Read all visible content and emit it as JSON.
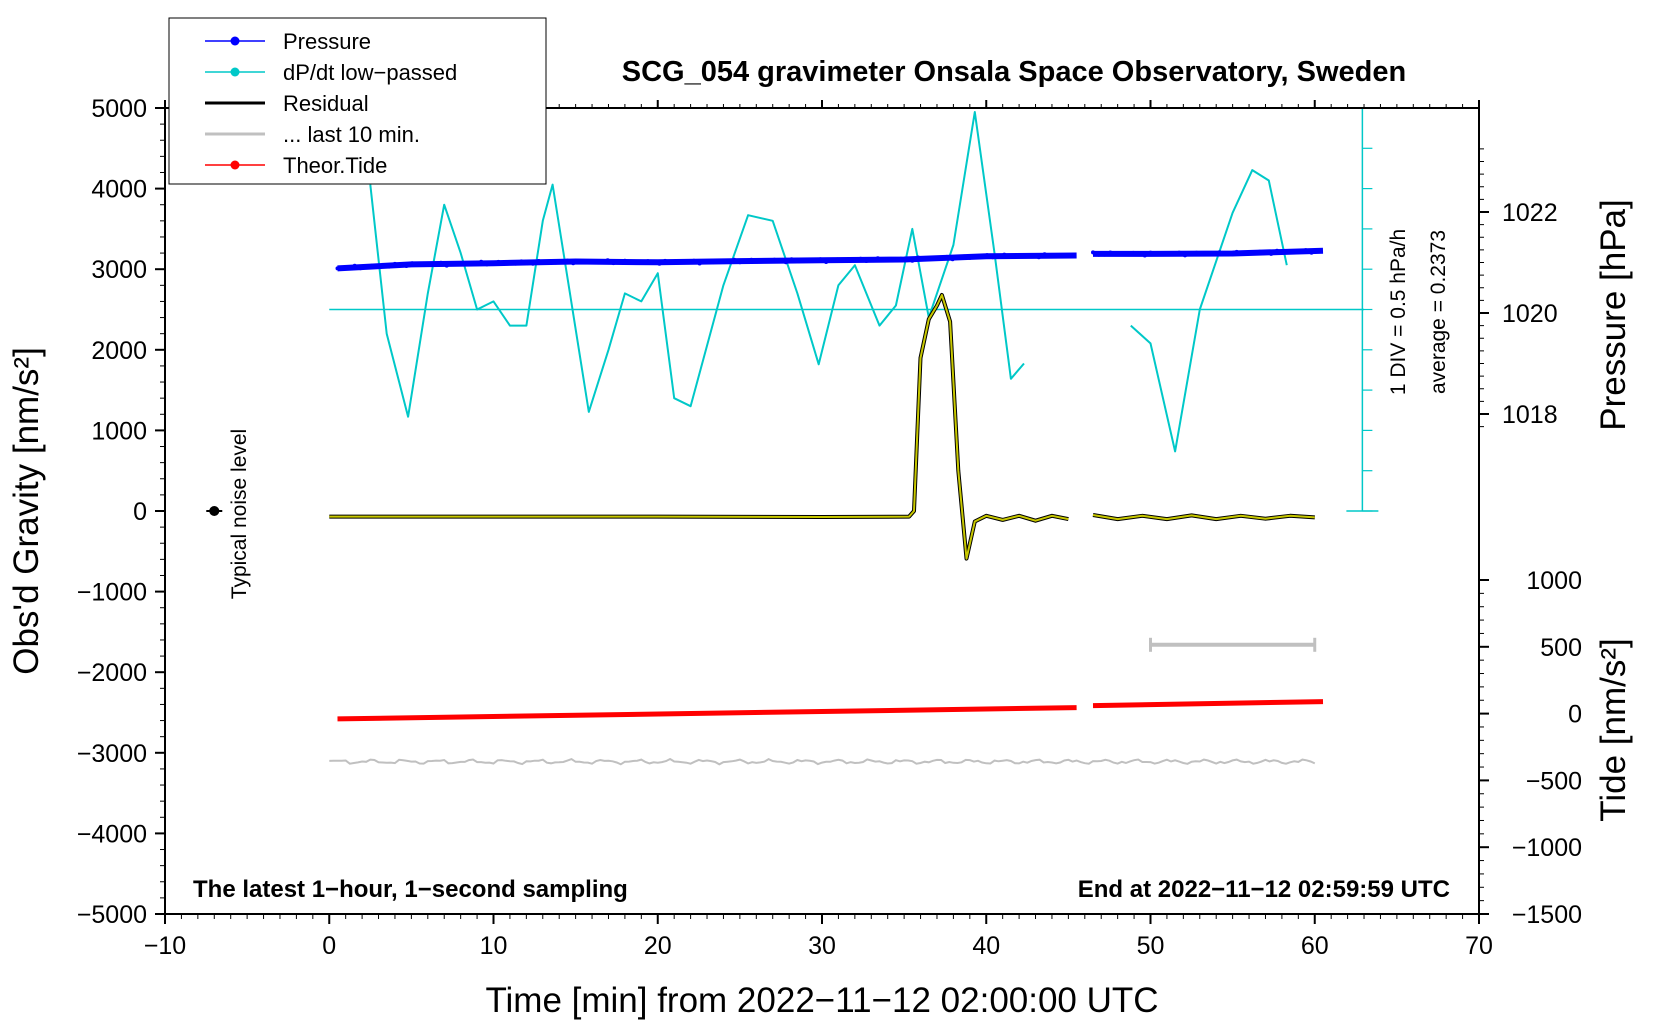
{
  "chart_data": {
    "type": "line",
    "title": "SCG_054 gravimeter Onsala Space Observatory, Sweden",
    "xlabel": "Time [min] from 2022−11−12 02:00:00 UTC",
    "ylabel_main": "Obs'd Gravity [nm/s²]",
    "ylabel_pressure": "Pressure [hPa]",
    "ylabel_tide": "Tide [nm/s²]",
    "xlim": [
      -10,
      70
    ],
    "ylim": [
      -5000,
      5000
    ],
    "x_ticks": [
      -10,
      0,
      10,
      20,
      30,
      40,
      50,
      60,
      70
    ],
    "x_tick_labels": [
      "−10",
      "0",
      "10",
      "20",
      "30",
      "40",
      "50",
      "60",
      "70"
    ],
    "y_ticks": [
      5000,
      4000,
      3000,
      2000,
      1000,
      0,
      -1000,
      -2000,
      -3000,
      -4000,
      -5000
    ],
    "y_tick_labels": [
      "5000",
      "4000",
      "3000",
      "2000",
      "1000",
      "0",
      "−1000",
      "−2000",
      "−3000",
      "−4000",
      "−5000"
    ],
    "pressure_ticks": [
      {
        "value": 1022,
        "label": "1022"
      },
      {
        "value": 1020,
        "label": "1020"
      },
      {
        "value": 1018,
        "label": "1018"
      }
    ],
    "tide_ticks": [
      {
        "value": 1000,
        "label": "1000"
      },
      {
        "value": 500,
        "label": "500"
      },
      {
        "value": 0,
        "label": "0"
      },
      {
        "value": -500,
        "label": "−500"
      },
      {
        "value": -1000,
        "label": "−1000"
      },
      {
        "value": -1500,
        "label": "−1500"
      }
    ],
    "legend": [
      {
        "name": "Pressure",
        "color": "#0000ff",
        "style": "line-dot"
      },
      {
        "name": "dP/dt low−passed",
        "color": "#00c8c8",
        "style": "line-dot"
      },
      {
        "name": "Residual",
        "color": "#000000",
        "style": "line"
      },
      {
        "name": "... last 10 min.",
        "color": "#c0c0c0",
        "style": "line"
      },
      {
        "name": "Theor.Tide",
        "color": "#ff0000",
        "style": "line-dot"
      }
    ],
    "dpdt_scale_label": "1 DIV = 0.5 hPa/h",
    "dpdt_average_label": "average = 0.2373",
    "noise_label": "Typical noise level",
    "footer_left": "The latest 1−hour, 1−second sampling",
    "footer_right": "End at 2022−11−12 02:59:59 UTC",
    "pressure_series": {
      "color": "#0000ff",
      "segments": [
        [
          [
            0.5,
            3010
          ],
          [
            5,
            3060
          ],
          [
            10,
            3075
          ],
          [
            15,
            3095
          ],
          [
            20,
            3085
          ],
          [
            25,
            3100
          ],
          [
            30,
            3110
          ],
          [
            35,
            3120
          ],
          [
            40,
            3160
          ],
          [
            45.5,
            3170
          ]
        ],
        [
          [
            46.5,
            3190
          ],
          [
            50,
            3190
          ],
          [
            55,
            3195
          ],
          [
            60.5,
            3230
          ]
        ]
      ]
    },
    "dpdt_series": {
      "color": "#00c8c8",
      "baseline": 2500,
      "segments": [
        [
          [
            2.5,
            4050
          ],
          [
            3.5,
            2200
          ],
          [
            4.8,
            1170
          ],
          [
            6,
            2700
          ],
          [
            7,
            3800
          ],
          [
            8,
            3200
          ],
          [
            9,
            2500
          ],
          [
            10,
            2600
          ],
          [
            11,
            2300
          ],
          [
            12,
            2300
          ],
          [
            13,
            3600
          ],
          [
            13.6,
            4050
          ],
          [
            14.5,
            2900
          ],
          [
            15.8,
            1230
          ],
          [
            17,
            2000
          ],
          [
            18,
            2700
          ],
          [
            19,
            2600
          ],
          [
            20,
            2950
          ],
          [
            21,
            1400
          ],
          [
            22,
            1300
          ],
          [
            24,
            2800
          ],
          [
            25.5,
            3670
          ],
          [
            27,
            3600
          ],
          [
            28.5,
            2700
          ],
          [
            29.8,
            1820
          ],
          [
            31,
            2800
          ],
          [
            32,
            3050
          ],
          [
            33.5,
            2300
          ],
          [
            34.5,
            2550
          ],
          [
            35.5,
            3500
          ],
          [
            36.5,
            2400
          ],
          [
            38,
            3300
          ],
          [
            39.3,
            4950
          ],
          [
            40.5,
            3200
          ],
          [
            41.5,
            1640
          ],
          [
            42.3,
            1830
          ]
        ],
        [
          [
            48.8,
            2300
          ],
          [
            50,
            2080
          ],
          [
            51.5,
            740
          ],
          [
            53,
            2500
          ],
          [
            55,
            3700
          ],
          [
            56.2,
            4230
          ],
          [
            57.2,
            4100
          ],
          [
            58.3,
            3050
          ]
        ]
      ]
    },
    "residual_series": {
      "color": "#c8c800",
      "outline_color": "#000000",
      "segments": [
        [
          [
            0,
            -70
          ],
          [
            10,
            -70
          ],
          [
            20,
            -70
          ],
          [
            30,
            -75
          ],
          [
            35.3,
            -70
          ],
          [
            35.6,
            0
          ],
          [
            36,
            1900
          ],
          [
            36.5,
            2380
          ],
          [
            37.0,
            2550
          ],
          [
            37.3,
            2680
          ],
          [
            37.8,
            2350
          ],
          [
            38.3,
            500
          ],
          [
            38.8,
            -590
          ],
          [
            39.3,
            -130
          ],
          [
            40,
            -60
          ],
          [
            41,
            -110
          ],
          [
            42,
            -60
          ],
          [
            43,
            -120
          ],
          [
            44,
            -60
          ],
          [
            45,
            -100
          ]
        ],
        [
          [
            46.5,
            -50
          ],
          [
            48,
            -100
          ],
          [
            49.5,
            -60
          ],
          [
            51,
            -100
          ],
          [
            52.5,
            -55
          ],
          [
            54,
            -100
          ],
          [
            55.5,
            -60
          ],
          [
            57,
            -95
          ],
          [
            58.5,
            -60
          ],
          [
            60,
            -80
          ]
        ]
      ]
    },
    "last10_series": {
      "color": "#c0c0c0",
      "baseline": -3110,
      "x_start": 0,
      "x_end": 60,
      "bar": {
        "x_start": 50,
        "x_end": 60,
        "y": -1660
      }
    },
    "tide_series": {
      "color": "#ff0000",
      "segments": [
        [
          [
            0.5,
            -40
          ],
          [
            45.5,
            45
          ]
        ],
        [
          [
            46.5,
            60
          ],
          [
            60.5,
            90
          ]
        ]
      ]
    },
    "noise_point": {
      "x": -7,
      "y": 0
    }
  }
}
